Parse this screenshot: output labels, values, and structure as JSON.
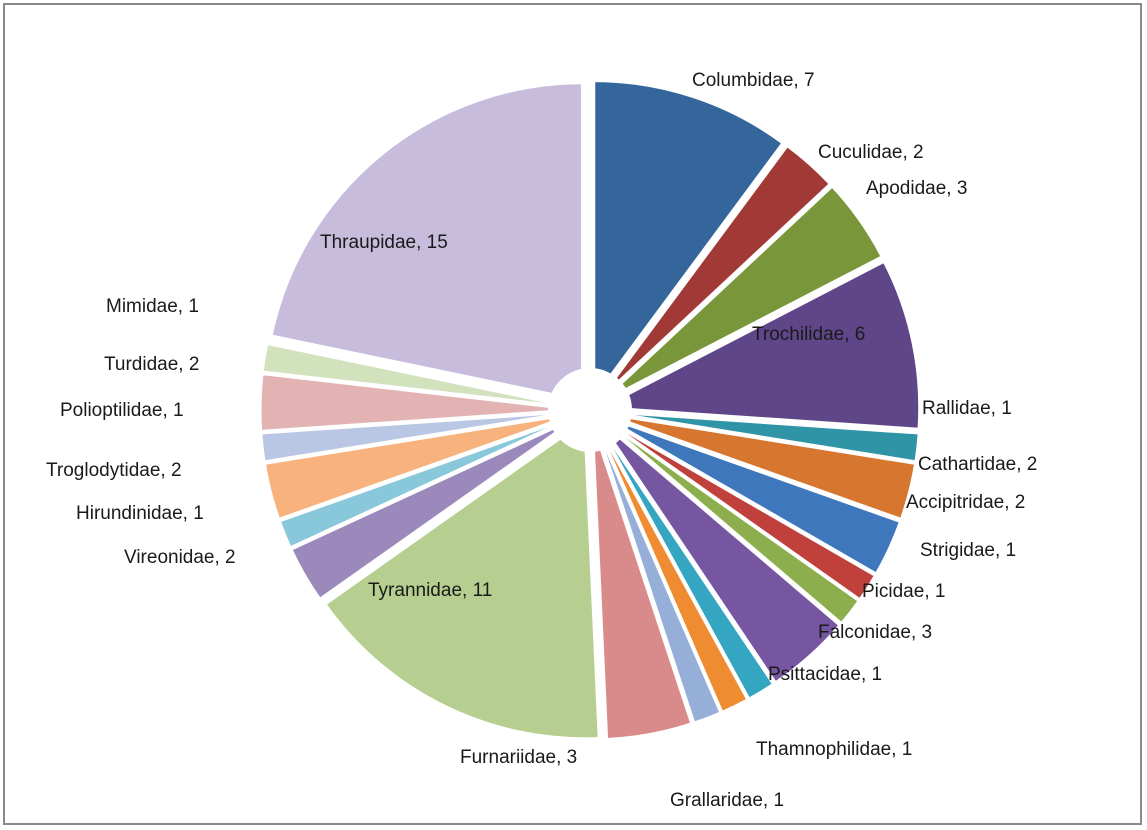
{
  "chart_data": {
    "type": "pie",
    "title": "",
    "exploded": true,
    "slices": [
      {
        "name": "Columbidae",
        "value": 7,
        "label": "Columbidae, 7",
        "color": "#34659B"
      },
      {
        "name": "Cuculidae",
        "value": 2,
        "label": "Cuculidae, 2",
        "color": "#A13A36"
      },
      {
        "name": "Apodidae",
        "value": 3,
        "label": "Apodidae, 3",
        "color": "#79973A"
      },
      {
        "name": "Trochilidae",
        "value": 6,
        "label": "Trochilidae, 6",
        "color": "#5F4688"
      },
      {
        "name": "Rallidae",
        "value": 1,
        "label": "Rallidae, 1",
        "color": "#2E94A6"
      },
      {
        "name": "Cathartidae",
        "value": 2,
        "label": "Cathartidae, 2",
        "color": "#D7772F"
      },
      {
        "name": "Accipitridae",
        "value": 2,
        "label": "Accipitridae, 2",
        "color": "#3F77BC"
      },
      {
        "name": "Strigidae",
        "value": 1,
        "label": "Strigidae, 1",
        "color": "#C0413C"
      },
      {
        "name": "Picidae",
        "value": 1,
        "label": "Picidae, 1",
        "color": "#8CAE4D"
      },
      {
        "name": "Falconidae",
        "value": 3,
        "label": "Falconidae, 3",
        "color": "#7756A1"
      },
      {
        "name": "Psittacidae",
        "value": 1,
        "label": "Psittacidae, 1",
        "color": "#34A6C1"
      },
      {
        "name": "Thamnophilidae",
        "value": 1,
        "label": "Thamnophilidae, 1",
        "color": "#EF8C32"
      },
      {
        "name": "Grallaridae",
        "value": 1,
        "label": "Grallaridae, 1",
        "color": "#95AFD9"
      },
      {
        "name": "Furnariidae",
        "value": 3,
        "label": "Furnariidae, 3",
        "color": "#D98A8A"
      },
      {
        "name": "Tyrannidae",
        "value": 11,
        "label": "Tyrannidae, 11",
        "color": "#B6CE8F"
      },
      {
        "name": "Vireonidae",
        "value": 2,
        "label": "Vireonidae, 2",
        "color": "#9B89BC"
      },
      {
        "name": "Hirundinidae",
        "value": 1,
        "label": "Hirundinidae, 1",
        "color": "#89C8DA"
      },
      {
        "name": "Troglodytidae",
        "value": 2,
        "label": "Troglodytidae, 2",
        "color": "#F7B27D"
      },
      {
        "name": "Polioptilidae",
        "value": 1,
        "label": "Polioptilidae, 1",
        "color": "#B9C7E4"
      },
      {
        "name": "Turdidae",
        "value": 2,
        "label": "Turdidae, 2",
        "color": "#E2B3B2"
      },
      {
        "name": "Mimidae",
        "value": 1,
        "label": "Mimidae, 1",
        "color": "#D1E2BD"
      },
      {
        "name": "Thraupidae",
        "value": 15,
        "label": "Thraupidae, 15",
        "color": "#C7BCDB"
      }
    ]
  }
}
